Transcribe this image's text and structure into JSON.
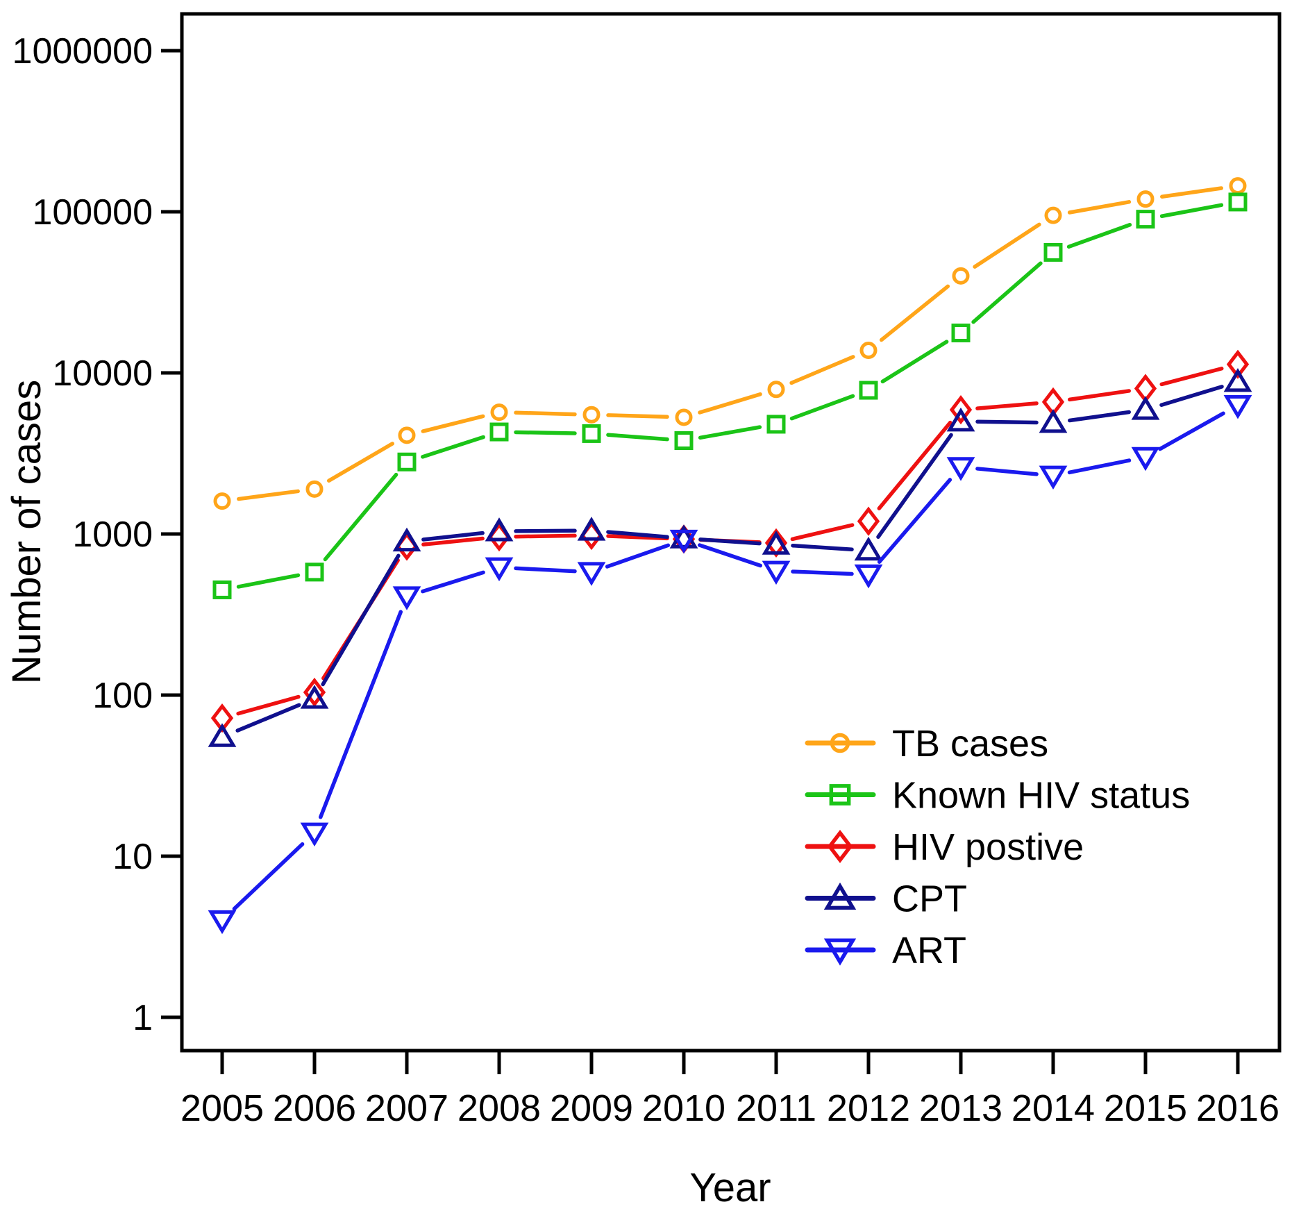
{
  "chart_data": {
    "type": "line",
    "title": "",
    "xlabel": "Year",
    "ylabel": "Number of cases",
    "y_scale": "log10",
    "ylim": [
      0.6,
      1700000
    ],
    "grid": false,
    "legend_position": "inside-bottom-right",
    "x": [
      2005,
      2006,
      2007,
      2008,
      2009,
      2010,
      2011,
      2012,
      2013,
      2014,
      2015,
      2016
    ],
    "y_ticks": [
      1,
      10,
      100,
      1000,
      10000,
      100000,
      1000000
    ],
    "series": [
      {
        "name": "TB cases",
        "marker": "circle",
        "color": "#FFA519",
        "values": [
          1600,
          1900,
          4100,
          5700,
          5500,
          5300,
          7900,
          13800,
          40000,
          95000,
          120000,
          145000
        ]
      },
      {
        "name": "Known HIV status",
        "marker": "square",
        "color": "#1BC417",
        "values": [
          450,
          580,
          2800,
          4300,
          4200,
          3800,
          4800,
          7800,
          17700,
          56000,
          90000,
          115000
        ]
      },
      {
        "name": "HIV postive",
        "marker": "diamond",
        "color": "#EE1111",
        "values": [
          72,
          104,
          840,
          960,
          980,
          930,
          880,
          1200,
          5900,
          6600,
          8000,
          11300
        ]
      },
      {
        "name": "CPT",
        "marker": "triangle-up",
        "color": "#10108E",
        "values": [
          55,
          95,
          900,
          1040,
          1050,
          940,
          860,
          790,
          5000,
          4900,
          5900,
          8800
        ]
      },
      {
        "name": "ART",
        "marker": "triangle-down",
        "color": "#1A1AEE",
        "values": [
          4,
          14,
          410,
          620,
          580,
          920,
          590,
          560,
          2600,
          2300,
          3000,
          6300
        ]
      }
    ],
    "colors": {
      "axis": "#000000",
      "background": "#ffffff"
    }
  }
}
